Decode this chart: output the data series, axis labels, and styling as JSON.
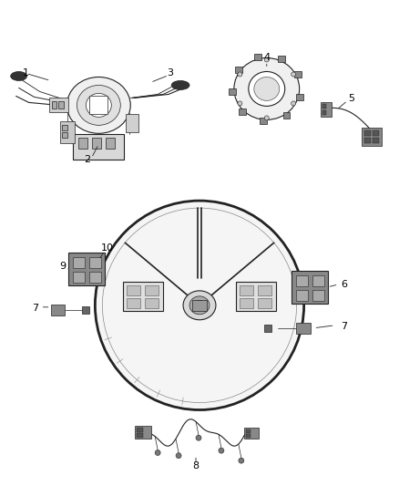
{
  "background_color": "#ffffff",
  "fig_width": 4.38,
  "fig_height": 5.33,
  "dpi": 100,
  "lc": "#222222",
  "lc_light": "#888888",
  "lc_med": "#555555"
}
